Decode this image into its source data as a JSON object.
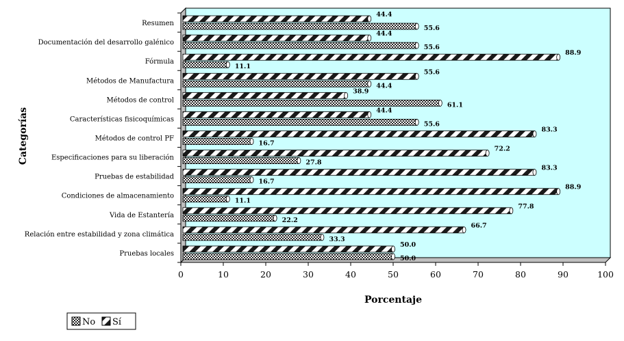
{
  "chart_data": {
    "type": "bar",
    "orientation": "horizontal",
    "xlabel": "Porcentaje",
    "ylabel": "Categorías",
    "xlim": [
      0,
      100
    ],
    "x_ticks": [
      "0",
      "10",
      "20",
      "30",
      "40",
      "50",
      "60",
      "70",
      "80",
      "90",
      "100"
    ],
    "categories": [
      "Resumen",
      "Documentación del desarrollo galénico",
      "Fórmula",
      "Métodos de Manufactura",
      "Métodos de control",
      "Características fisicoquímicas",
      "Métodos de control PF",
      "Especificaciones para su liberación",
      "Pruebas de estabilidad",
      "Condiciones de almacenamiento",
      "Vida de Estantería",
      "Relación entre estabilidad y zona climática",
      "Pruebas locales"
    ],
    "series": [
      {
        "name": "No",
        "values": [
          55.6,
          55.6,
          11.1,
          44.4,
          61.1,
          55.6,
          16.7,
          27.8,
          16.7,
          11.1,
          22.2,
          33.3,
          50.0
        ],
        "labels": [
          "55.6",
          "55.6",
          "11.1",
          "44.4",
          "61.1",
          "55.6",
          "16.7",
          "27.8",
          "16.7",
          "11.1",
          "22.2",
          "33.3",
          "50.0"
        ]
      },
      {
        "name": "Sí",
        "values": [
          44.4,
          44.4,
          88.9,
          55.6,
          38.9,
          44.4,
          83.3,
          72.2,
          83.3,
          88.9,
          77.8,
          66.7,
          50.0
        ],
        "labels": [
          "44.4",
          "44.4",
          "88.9",
          "55.6",
          "38.9",
          "44.4",
          "83.3",
          "72.2",
          "83.3",
          "88.9",
          "77.8",
          "66.7",
          "50.0"
        ]
      }
    ],
    "legend": {
      "position": "bottom-left",
      "items": [
        "No",
        "Sí"
      ]
    },
    "colors": {
      "plot_background": "#ccffff",
      "bar_dark": "#1a1a1a",
      "bar_light": "#ffffff"
    },
    "grid": false
  }
}
